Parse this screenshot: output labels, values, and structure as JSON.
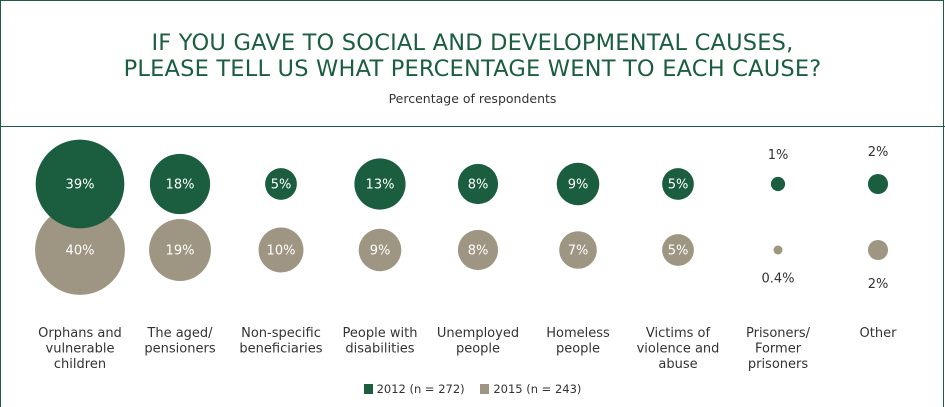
{
  "colors": {
    "s2012": "#1b5e3f",
    "s2015": "#9e9682",
    "title": "#1b5e3f",
    "text": "#333333"
  },
  "chart_data": {
    "type": "bubble",
    "title": "IF YOU GAVE TO SOCIAL AND DEVELOPMENTAL CAUSES, PLEASE TELL US WHAT PERCENTAGE WENT TO EACH CAUSE?",
    "title_lines": [
      "IF YOU GAVE TO SOCIAL AND DEVELOPMENTAL CAUSES,",
      "PLEASE TELL US WHAT PERCENTAGE WENT TO EACH CAUSE?"
    ],
    "subtitle": "Percentage of respondents",
    "categories": [
      [
        "Orphans and",
        "vulnerable",
        "children"
      ],
      [
        "The aged/",
        "pensioners"
      ],
      [
        "Non-specific",
        "beneficiaries"
      ],
      [
        "People with",
        "disabilities"
      ],
      [
        "Unemployed",
        "people"
      ],
      [
        "Homeless",
        "people"
      ],
      [
        "Victims of",
        "violence and",
        "abuse"
      ],
      [
        "Prisoners/",
        "Former",
        "prisoners"
      ],
      [
        "Other"
      ]
    ],
    "series": [
      {
        "name": "2012 (n = 272)",
        "values": [
          39,
          18,
          5,
          13,
          8,
          9,
          5,
          1,
          2
        ],
        "labels": [
          "39%",
          "18%",
          "5%",
          "13%",
          "8%",
          "9%",
          "5%",
          "1%",
          "2%"
        ]
      },
      {
        "name": "2015 (n = 243)",
        "values": [
          40,
          19,
          10,
          9,
          8,
          7,
          5,
          0.4,
          2
        ],
        "labels": [
          "40%",
          "19%",
          "10%",
          "9%",
          "8%",
          "7%",
          "5%",
          "0.4%",
          "2%"
        ]
      }
    ],
    "legend_position": "bottom"
  }
}
